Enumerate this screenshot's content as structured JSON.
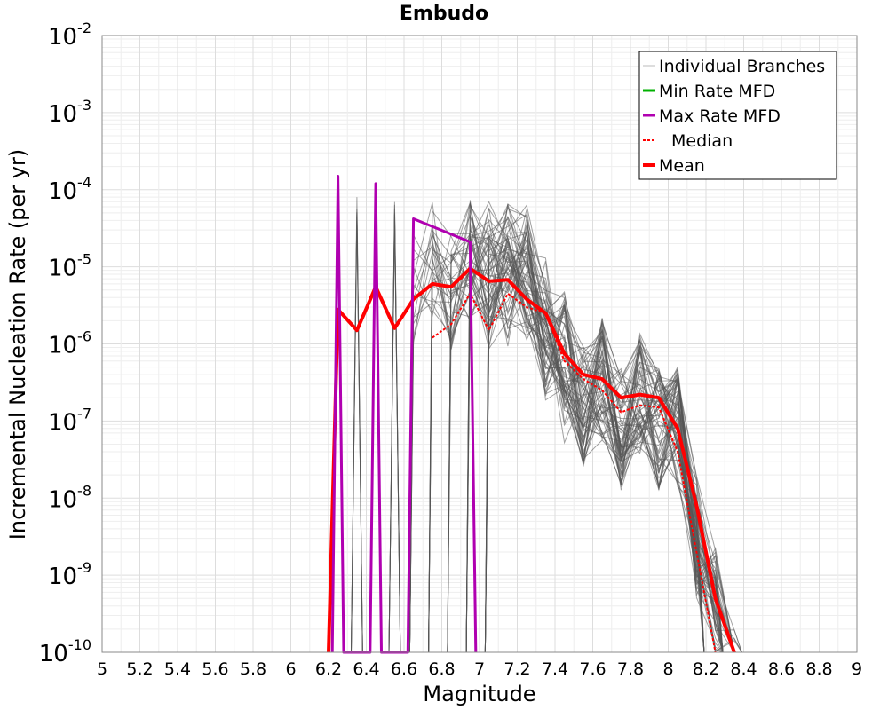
{
  "chart_data": {
    "type": "line",
    "title": "Embudo",
    "xlabel": "Magnitude",
    "ylabel": "Incremental Nucleation Rate (per yr)",
    "xlim": [
      5,
      9
    ],
    "ylim": [
      1e-10,
      0.01
    ],
    "yscale": "log",
    "grid": true,
    "legend_position": "top-right",
    "x_ticks": [
      "5",
      "5.2",
      "5.4",
      "5.6",
      "5.8",
      "6",
      "6.2",
      "6.4",
      "6.6",
      "6.8",
      "7",
      "7.2",
      "7.4",
      "7.6",
      "7.8",
      "8",
      "8.2",
      "8.4",
      "8.6",
      "8.8",
      "9"
    ],
    "y_ticks": [
      {
        "base": "10",
        "exp": "-2",
        "value": 0.01
      },
      {
        "base": "10",
        "exp": "-3",
        "value": 0.001
      },
      {
        "base": "10",
        "exp": "-4",
        "value": 0.0001
      },
      {
        "base": "10",
        "exp": "-5",
        "value": 1e-05
      },
      {
        "base": "10",
        "exp": "-6",
        "value": 1e-06
      },
      {
        "base": "10",
        "exp": "-7",
        "value": 1e-07
      },
      {
        "base": "10",
        "exp": "-8",
        "value": 1e-08
      },
      {
        "base": "10",
        "exp": "-9",
        "value": 1e-09
      },
      {
        "base": "10",
        "exp": "-10",
        "value": 1e-10
      }
    ],
    "legend": [
      {
        "label": "Individual Branches",
        "color": "#bbbbbb",
        "style": "thin"
      },
      {
        "label": "Min Rate MFD",
        "color": "#00b000",
        "style": "solid"
      },
      {
        "label": "Max Rate MFD",
        "color": "#b000b0",
        "style": "solid"
      },
      {
        "label": "Median",
        "color": "#ff0000",
        "style": "dotted"
      },
      {
        "label": "Mean",
        "color": "#ff0000",
        "style": "thick"
      }
    ],
    "series": [
      {
        "name": "Mean",
        "color": "#ff0000",
        "x": [
          6.2,
          6.25,
          6.35,
          6.45,
          6.55,
          6.65,
          6.75,
          6.85,
          6.95,
          7.05,
          7.15,
          7.25,
          7.35,
          7.45,
          7.55,
          7.65,
          7.75,
          7.85,
          7.95,
          8.05,
          8.15,
          8.25,
          8.35
        ],
        "y": [
          1e-10,
          2.8e-06,
          1.5e-06,
          5.5e-06,
          1.6e-06,
          3.8e-06,
          6e-06,
          5.5e-06,
          9.5e-06,
          6.5e-06,
          6.8e-06,
          3.8e-06,
          2.5e-06,
          7.5e-07,
          4e-07,
          3.5e-07,
          2e-07,
          2.2e-07,
          2e-07,
          8e-08,
          8e-09,
          5e-10,
          1e-10
        ]
      },
      {
        "name": "Median",
        "color": "#ff0000",
        "x": [
          6.75,
          6.85,
          6.95,
          7.05,
          7.15,
          7.25,
          7.35,
          7.45,
          7.55,
          7.65,
          7.75,
          7.85,
          7.95,
          8.05,
          8.15,
          8.25
        ],
        "y": [
          1.2e-06,
          1.8e-06,
          4.5e-06,
          1.5e-06,
          4.5e-06,
          3e-06,
          2.5e-06,
          6e-07,
          3.5e-07,
          2.5e-07,
          1.3e-07,
          1.6e-07,
          1.5e-07,
          4e-08,
          2e-09,
          1e-10
        ]
      },
      {
        "name": "Max Rate MFD",
        "color": "#b000b0",
        "x": [
          6.22,
          6.25,
          6.28,
          6.42,
          6.45,
          6.48,
          6.62,
          6.65,
          6.95,
          6.98
        ],
        "y": [
          1e-10,
          0.00015,
          1e-10,
          1e-10,
          0.00012,
          1e-10,
          1e-10,
          4.2e-05,
          2.1e-05,
          1e-10
        ]
      }
    ]
  }
}
